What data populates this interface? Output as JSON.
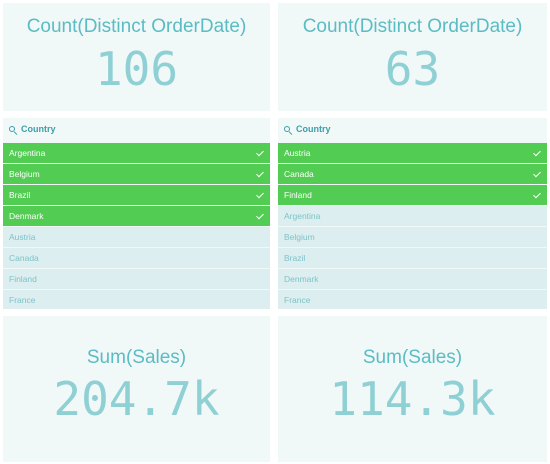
{
  "kpi_top_left": {
    "title": "Count(Distinct OrderDate)",
    "value": "106"
  },
  "kpi_top_right": {
    "title": "Count(Distinct OrderDate)",
    "value": "63"
  },
  "filter_left": {
    "label": "Country",
    "selected": [
      "Argentina",
      "Belgium",
      "Brazil",
      "Denmark"
    ],
    "alternative": [
      "Austria",
      "Canada",
      "Finland",
      "France"
    ]
  },
  "filter_right": {
    "label": "Country",
    "selected": [
      "Austria",
      "Canada",
      "Finland"
    ],
    "alternative": [
      "Argentina",
      "Belgium",
      "Brazil",
      "Denmark",
      "France"
    ]
  },
  "kpi_bottom_left": {
    "title": "Sum(Sales)",
    "value": "204.7k"
  },
  "kpi_bottom_right": {
    "title": "Sum(Sales)",
    "value": "114.3k"
  },
  "colors": {
    "selected": "#52cc52",
    "alternative": "#dceeef",
    "panel": "#f1f8f8",
    "title_text": "#5bbcc4",
    "value_text": "#8fd0d5"
  },
  "icons": {
    "search": "search-icon",
    "check": "check-icon"
  }
}
